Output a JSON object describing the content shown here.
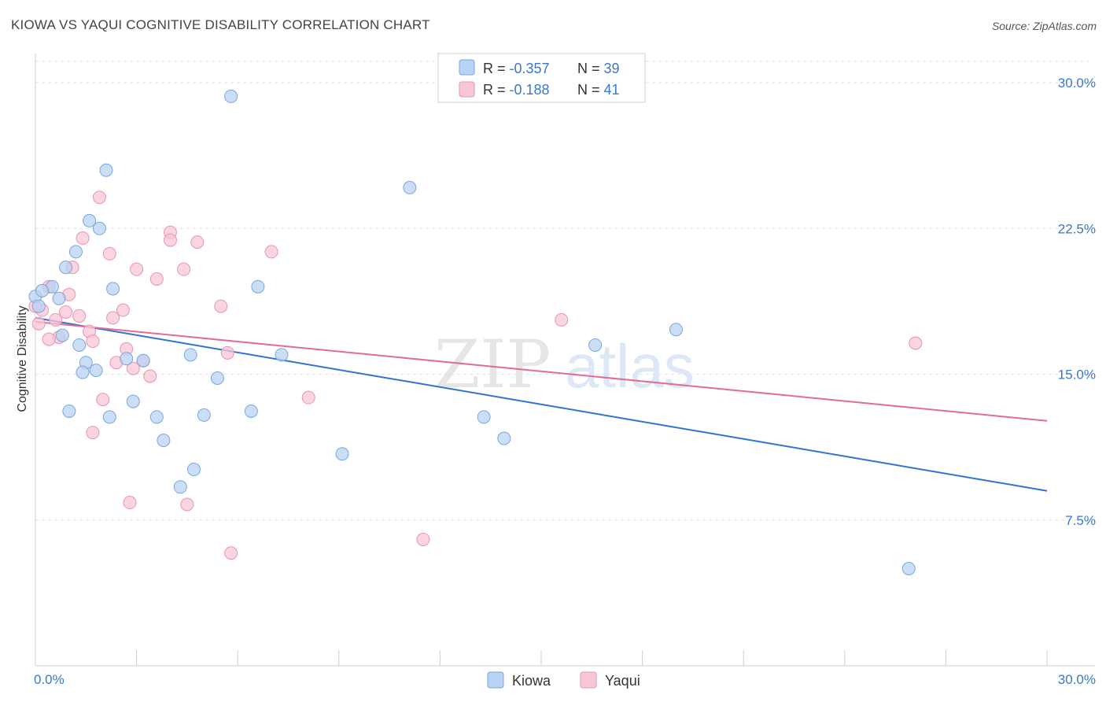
{
  "title": "KIOWA VS YAQUI COGNITIVE DISABILITY CORRELATION CHART",
  "source": "Source: ZipAtlas.com",
  "watermark": {
    "zip": "ZIP",
    "atlas": "atlas"
  },
  "colors": {
    "kiowa_fill": "#b8d3f3",
    "kiowa_stroke": "#7aa6dc",
    "kiowa_line": "#2f74d0",
    "yaqui_fill": "#f8c6d5",
    "yaqui_stroke": "#e796b0",
    "yaqui_line": "#e06c97",
    "value_text": "#3a78c9",
    "grid": "#e2e2e2"
  },
  "legend_top": [
    {
      "r_label": "R = ",
      "r_value": "-0.357",
      "n_label": "N = ",
      "n_value": "39"
    },
    {
      "r_label": "R = ",
      "r_value": "-0.188",
      "n_label": "N = ",
      "n_value": "41"
    }
  ],
  "chart_data": {
    "type": "scatter",
    "title": "KIOWA VS YAQUI COGNITIVE DISABILITY CORRELATION CHART",
    "xlabel": "",
    "ylabel": "Cognitive Disability",
    "xlim": [
      0,
      30
    ],
    "ylim": [
      0,
      31.5
    ],
    "x_tick_labels": [
      "0.0%",
      "30.0%"
    ],
    "y_ticks": [
      7.5,
      15.0,
      22.5,
      30.0
    ],
    "y_tick_labels": [
      "7.5%",
      "15.0%",
      "22.5%",
      "30.0%"
    ],
    "grid": "horizontal dashed",
    "legend_placement": "top-center and bottom-center",
    "series": [
      {
        "name": "Kiowa",
        "r": -0.357,
        "n": 39,
        "trend": {
          "x": [
            0,
            30
          ],
          "y": [
            17.9,
            9.0
          ]
        },
        "points": [
          [
            5.8,
            29.3
          ],
          [
            2.1,
            25.5
          ],
          [
            11.1,
            24.6
          ],
          [
            1.6,
            22.9
          ],
          [
            1.9,
            22.5
          ],
          [
            1.2,
            21.3
          ],
          [
            0.9,
            20.5
          ],
          [
            0.5,
            19.5
          ],
          [
            2.3,
            19.4
          ],
          [
            6.6,
            19.5
          ],
          [
            0.0,
            19.0
          ],
          [
            0.7,
            18.9
          ],
          [
            0.1,
            18.5
          ],
          [
            0.8,
            17.0
          ],
          [
            1.3,
            16.5
          ],
          [
            19.0,
            17.3
          ],
          [
            16.6,
            16.5
          ],
          [
            4.6,
            16.0
          ],
          [
            7.3,
            16.0
          ],
          [
            1.5,
            15.6
          ],
          [
            2.7,
            15.8
          ],
          [
            3.2,
            15.7
          ],
          [
            1.8,
            15.2
          ],
          [
            1.4,
            15.1
          ],
          [
            5.4,
            14.8
          ],
          [
            1.0,
            13.1
          ],
          [
            2.9,
            13.6
          ],
          [
            2.2,
            12.8
          ],
          [
            3.6,
            12.8
          ],
          [
            5.0,
            12.9
          ],
          [
            6.4,
            13.1
          ],
          [
            13.3,
            12.8
          ],
          [
            3.8,
            11.6
          ],
          [
            13.9,
            11.7
          ],
          [
            9.1,
            10.9
          ],
          [
            4.7,
            10.1
          ],
          [
            4.3,
            9.2
          ],
          [
            25.9,
            5.0
          ],
          [
            0.2,
            19.3
          ]
        ]
      },
      {
        "name": "Yaqui",
        "r": -0.188,
        "n": 41,
        "trend": {
          "x": [
            0,
            30
          ],
          "y": [
            17.7,
            12.6
          ]
        },
        "points": [
          [
            1.9,
            24.1
          ],
          [
            4.0,
            22.3
          ],
          [
            1.4,
            22.0
          ],
          [
            4.0,
            21.9
          ],
          [
            4.8,
            21.8
          ],
          [
            2.2,
            21.2
          ],
          [
            7.0,
            21.3
          ],
          [
            1.1,
            20.5
          ],
          [
            3.0,
            20.4
          ],
          [
            4.4,
            20.4
          ],
          [
            3.6,
            19.9
          ],
          [
            0.4,
            19.5
          ],
          [
            1.0,
            19.1
          ],
          [
            5.5,
            18.5
          ],
          [
            0.2,
            18.3
          ],
          [
            0.9,
            18.2
          ],
          [
            2.6,
            18.3
          ],
          [
            1.3,
            18.0
          ],
          [
            2.3,
            17.9
          ],
          [
            0.6,
            17.8
          ],
          [
            0.1,
            17.6
          ],
          [
            15.6,
            17.8
          ],
          [
            1.6,
            17.2
          ],
          [
            0.7,
            16.9
          ],
          [
            0.4,
            16.8
          ],
          [
            1.7,
            16.7
          ],
          [
            26.1,
            16.6
          ],
          [
            2.7,
            16.3
          ],
          [
            5.7,
            16.1
          ],
          [
            3.2,
            15.7
          ],
          [
            2.4,
            15.6
          ],
          [
            2.9,
            15.3
          ],
          [
            3.4,
            14.9
          ],
          [
            2.0,
            13.7
          ],
          [
            8.1,
            13.8
          ],
          [
            1.7,
            12.0
          ],
          [
            2.8,
            8.4
          ],
          [
            4.5,
            8.3
          ],
          [
            5.8,
            5.8
          ],
          [
            11.5,
            6.5
          ],
          [
            0.0,
            18.5
          ]
        ]
      }
    ]
  }
}
